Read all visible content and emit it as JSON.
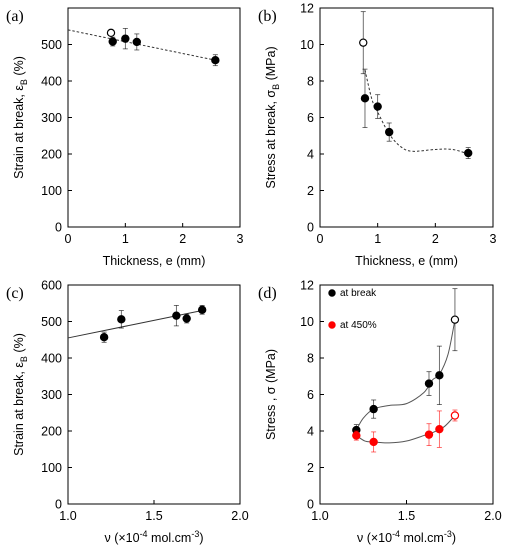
{
  "chart_data": [
    {
      "id": "a",
      "type": "scatter",
      "panel_label": "(a)",
      "xlabel": "Thickness, e (mm)",
      "ylabel": {
        "main": "Strain at break, ε",
        "sub": "B",
        "tail": " (%)"
      },
      "xlim": [
        0,
        3
      ],
      "ylim": [
        0,
        600
      ],
      "xticks": [
        "0",
        "1",
        "2",
        "3"
      ],
      "yticks": [
        "0",
        "100",
        "200",
        "300",
        "400",
        "500"
      ],
      "series": [
        {
          "points": [
            {
              "x": 0.78,
              "y": 508,
              "err": 12,
              "filled": true
            },
            {
              "x": 1.0,
              "y": 516,
              "err": 28,
              "filled": true
            },
            {
              "x": 1.2,
              "y": 507,
              "err": 22,
              "filled": true
            },
            {
              "x": 2.57,
              "y": 457,
              "err": 15,
              "filled": true
            },
            {
              "x": 0.75,
              "y": 532,
              "err": 0,
              "filled": false
            }
          ]
        }
      ],
      "fit": {
        "style": "dotted",
        "points": [
          [
            0,
            540
          ],
          [
            2.57,
            457
          ]
        ]
      }
    },
    {
      "id": "b",
      "type": "scatter",
      "panel_label": "(b)",
      "xlabel": "Thickness, e (mm)",
      "ylabel": {
        "main": "Stress at break, σ",
        "sub": "B",
        "tail": " (MPa)"
      },
      "xlim": [
        0,
        3
      ],
      "ylim": [
        0,
        12
      ],
      "xticks": [
        "0",
        "1",
        "2",
        "3"
      ],
      "yticks": [
        "0",
        "2",
        "4",
        "6",
        "8",
        "10",
        "12"
      ],
      "series": [
        {
          "points": [
            {
              "x": 0.75,
              "y": 10.1,
              "err": 1.7,
              "filled": false
            },
            {
              "x": 0.78,
              "y": 7.05,
              "err": 1.6,
              "filled": true
            },
            {
              "x": 1.0,
              "y": 6.6,
              "err": 0.65,
              "filled": true
            },
            {
              "x": 1.2,
              "y": 5.2,
              "err": 0.5,
              "filled": true
            },
            {
              "x": 2.57,
              "y": 4.05,
              "err": 0.3,
              "filled": true
            }
          ]
        }
      ],
      "fit": {
        "style": "dotted",
        "points": [
          [
            0.78,
            8.6
          ],
          [
            0.9,
            7.0
          ],
          [
            1.0,
            6.3
          ],
          [
            1.2,
            5.1
          ],
          [
            1.4,
            4.4
          ],
          [
            1.6,
            4.15
          ],
          [
            2.0,
            4.25
          ],
          [
            2.3,
            4.25
          ],
          [
            2.57,
            4.0
          ]
        ]
      }
    },
    {
      "id": "c",
      "type": "scatter",
      "panel_label": "(c)",
      "xlabel": {
        "main": "ν (×10",
        "sup": "-4",
        "tail": " mol.cm",
        "sup2": "-3",
        "end": ")"
      },
      "ylabel": {
        "main": "Strain at break, ε",
        "sub": "B",
        "tail": " (%)"
      },
      "xlim": [
        1.0,
        2.0
      ],
      "ylim": [
        0,
        600
      ],
      "xticks": [
        "1.0",
        "1.5",
        "2.0"
      ],
      "yticks": [
        "0",
        "100",
        "200",
        "300",
        "400",
        "500",
        "600"
      ],
      "series": [
        {
          "points": [
            {
              "x": 1.21,
              "y": 457,
              "err": 14,
              "filled": true
            },
            {
              "x": 1.31,
              "y": 506,
              "err": 24,
              "filled": true
            },
            {
              "x": 1.63,
              "y": 516,
              "err": 28,
              "filled": true
            },
            {
              "x": 1.69,
              "y": 508,
              "err": 12,
              "filled": true
            },
            {
              "x": 1.78,
              "y": 532,
              "err": 12,
              "filled": true
            }
          ]
        }
      ],
      "fit": {
        "style": "solid",
        "points": [
          [
            1.0,
            455
          ],
          [
            1.78,
            530
          ]
        ]
      }
    },
    {
      "id": "d",
      "type": "scatter",
      "panel_label": "(d)",
      "xlabel": {
        "main": "ν (×10",
        "sup": "-4",
        "tail": " mol.cm",
        "sup2": "-3",
        "end": ")"
      },
      "ylabel": {
        "main": "Stress , σ (MPa)",
        "sub": "",
        "tail": ""
      },
      "xlim": [
        1.0,
        2.0
      ],
      "ylim": [
        0,
        12
      ],
      "xticks": [
        "1.0",
        "1.5",
        "2.0"
      ],
      "yticks": [
        "0",
        "2",
        "4",
        "6",
        "8",
        "10",
        "12"
      ],
      "legend_position": "top-left",
      "series": [
        {
          "name": "at break",
          "color": "#000000",
          "points": [
            {
              "x": 1.21,
              "y": 4.05,
              "err": 0.3,
              "filled": true
            },
            {
              "x": 1.31,
              "y": 5.2,
              "err": 0.5,
              "filled": true
            },
            {
              "x": 1.63,
              "y": 6.6,
              "err": 0.65,
              "filled": true
            },
            {
              "x": 1.69,
              "y": 7.05,
              "err": 1.6,
              "filled": true
            },
            {
              "x": 1.78,
              "y": 10.1,
              "err": 1.7,
              "filled": false
            }
          ]
        },
        {
          "name": "at 450%",
          "color": "#ff0000",
          "points": [
            {
              "x": 1.21,
              "y": 3.75,
              "err": 0.25,
              "filled": true
            },
            {
              "x": 1.31,
              "y": 3.4,
              "err": 0.55,
              "filled": true
            },
            {
              "x": 1.63,
              "y": 3.8,
              "err": 0.6,
              "filled": true
            },
            {
              "x": 1.69,
              "y": 4.1,
              "err": 1.0,
              "filled": true
            },
            {
              "x": 1.78,
              "y": 4.85,
              "err": 0.3,
              "filled": false
            }
          ]
        }
      ],
      "fits": [
        {
          "style": "solid",
          "color": "#555555",
          "points": [
            [
              1.21,
              4.05
            ],
            [
              1.25,
              4.7
            ],
            [
              1.31,
              5.2
            ],
            [
              1.4,
              5.4
            ],
            [
              1.5,
              5.5
            ],
            [
              1.6,
              6.1
            ],
            [
              1.65,
              6.8
            ],
            [
              1.69,
              7.1
            ],
            [
              1.74,
              8.2
            ],
            [
              1.78,
              10.1
            ]
          ]
        },
        {
          "style": "solid",
          "color": "#555555",
          "points": [
            [
              1.21,
              3.75
            ],
            [
              1.26,
              3.45
            ],
            [
              1.31,
              3.4
            ],
            [
              1.4,
              3.35
            ],
            [
              1.5,
              3.45
            ],
            [
              1.6,
              3.75
            ],
            [
              1.66,
              3.95
            ],
            [
              1.72,
              4.25
            ],
            [
              1.78,
              4.85
            ]
          ]
        }
      ]
    }
  ]
}
